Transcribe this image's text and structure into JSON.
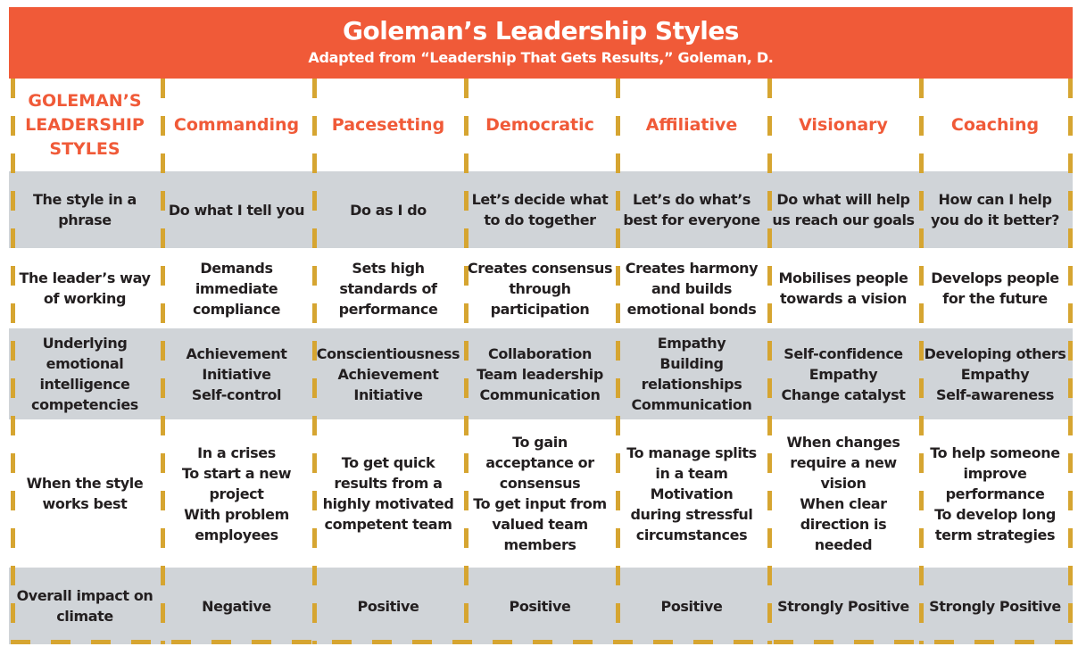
{
  "title": "Goleman’s Leadership Styles",
  "subtitle": "Adapted from “Leadership That Gets Results,” Goleman, D.",
  "colors": {
    "banner": "#f05a38",
    "accent": "#f05a38",
    "dash": "#d6a531",
    "row_shade": "#d0d4d8"
  },
  "header": [
    "GOLEMAN’S\nLEADERSHIP\nSTYLES",
    "Commanding",
    "Pacesetting",
    "Democratic",
    "Affiliative",
    "Visionary",
    "Coaching"
  ],
  "rows": [
    [
      "The style in a\nphrase",
      "Do what I tell you",
      "Do as I do",
      "Let’s decide what\nto do together",
      "Let’s do what’s\nbest for everyone",
      "Do what will help\nus reach our goals",
      "How can I help\nyou do it better?"
    ],
    [
      "The leader’s way\nof working",
      "Demands\nimmediate\ncompliance",
      "Sets high\nstandards of\nperformance",
      "Creates consensus\nthrough\nparticipation",
      "Creates harmony\nand builds\nemotional bonds",
      "Mobilises people\ntowards a vision",
      "Develops people\nfor the future"
    ],
    [
      "Underlying\nemotional\nintelligence\ncompetencies",
      "Achievement\nInitiative\nSelf-control",
      "Conscientiousness\nAchievement\nInitiative",
      "Collaboration\nTeam leadership\nCommunication",
      "Empathy\nBuilding\nrelationships\nCommunication",
      "Self-confidence\nEmpathy\nChange catalyst",
      "Developing others\nEmpathy\nSelf-awareness"
    ],
    [
      "When the style\nworks best",
      "In a crises\nTo start a new\nproject\nWith problem\nemployees",
      "To get quick\nresults from a\nhighly motivated\ncompetent team",
      "To gain\nacceptance or\nconsensus\nTo get input from\nvalued team\nmembers",
      "To manage splits\nin a team\nMotivation\nduring stressful\ncircumstances",
      "When changes\nrequire a new\nvision\nWhen clear\ndirection is\nneeded",
      "To help someone\nimprove\nperformance\nTo develop long\nterm strategies"
    ],
    [
      "Overall impact on\nclimate",
      "Negative",
      "Positive",
      "Positive",
      "Positive",
      "Strongly Positive",
      "Strongly Positive"
    ]
  ]
}
